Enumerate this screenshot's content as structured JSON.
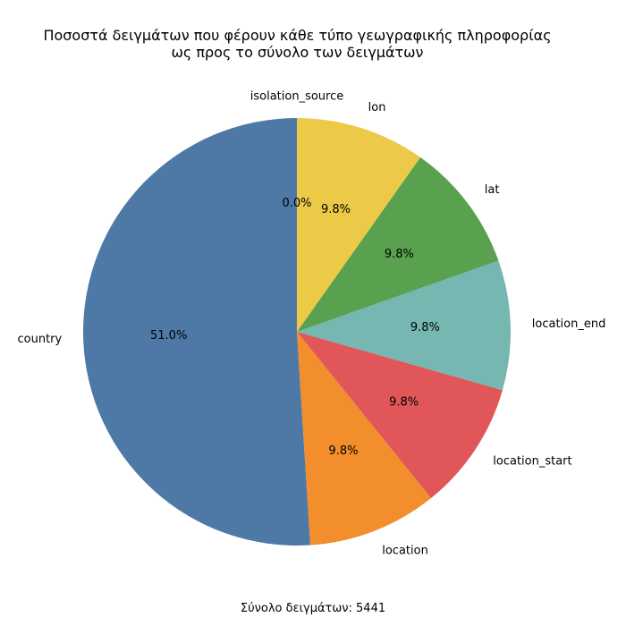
{
  "chart_data": {
    "type": "pie",
    "title_line1": "Ποσοστά δειγμάτων που φέρουν κάθε τύπο γεωγραφικής πληροφορίας",
    "title_line2": "ως προς το σύνολο των δειγμάτων",
    "slices": [
      {
        "label": "country",
        "percent": 51.0,
        "pct_label": "51.0%",
        "color": "#4e79a7"
      },
      {
        "label": "location",
        "percent": 9.8,
        "pct_label": "9.8%",
        "color": "#f28e2b"
      },
      {
        "label": "location_start",
        "percent": 9.8,
        "pct_label": "9.8%",
        "color": "#e15759"
      },
      {
        "label": "location_end",
        "percent": 9.8,
        "pct_label": "9.8%",
        "color": "#76b7b2"
      },
      {
        "label": "lat",
        "percent": 9.8,
        "pct_label": "9.8%",
        "color": "#59a14f"
      },
      {
        "label": "lon",
        "percent": 9.8,
        "pct_label": "9.8%",
        "color": "#edc948"
      },
      {
        "label": "isolation_source",
        "percent": 0.0,
        "pct_label": "0.0%",
        "color": "#b07aa1"
      }
    ],
    "start_angle_deg": 90,
    "direction": "counterclockwise",
    "footer": "Σύνολο δειγμάτων: 5441"
  }
}
